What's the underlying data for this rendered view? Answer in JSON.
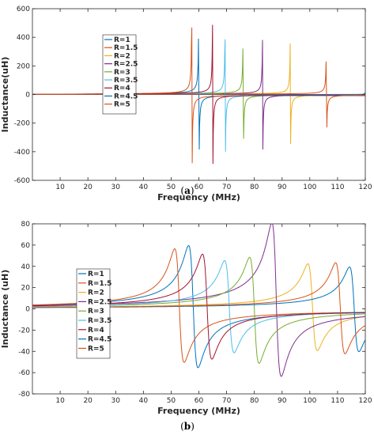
{
  "chart_data": [
    {
      "type": "line",
      "caption": "(a)",
      "xlabel": "Frequency (MHz)",
      "ylabel": "Inductance(uH)",
      "xlim": [
        0,
        120
      ],
      "ylim": [
        -600,
        600
      ],
      "xticks": [
        10,
        20,
        30,
        40,
        50,
        60,
        70,
        80,
        90,
        100,
        110,
        120
      ],
      "yticks": [
        -600,
        -400,
        -200,
        0,
        200,
        400,
        600
      ],
      "grid": false,
      "legend_position": "upper-left-center",
      "series": [
        {
          "name": "R=1",
          "color": "#0072BD",
          "resonance_mhz": 60.0,
          "peak": 515,
          "trough": -510
        },
        {
          "name": "R=1.5",
          "color": "#D95319",
          "resonance_mhz": 57.5,
          "peak": 545,
          "trough": -540
        },
        {
          "name": "R=2",
          "color": "#EDB120",
          "resonance_mhz": 93.0,
          "peak": 355,
          "trough": -345
        },
        {
          "name": "R=2.5",
          "color": "#7E2F8E",
          "resonance_mhz": 83.0,
          "peak": 380,
          "trough": -385
        },
        {
          "name": "R=3",
          "color": "#77AC30",
          "resonance_mhz": 76.0,
          "peak": 425,
          "trough": -410
        },
        {
          "name": "R=3.5",
          "color": "#4DBEEE",
          "resonance_mhz": 69.5,
          "peak": 450,
          "trough": -450
        },
        {
          "name": "R=4",
          "color": "#A2142F",
          "resonance_mhz": 65.0,
          "peak": 485,
          "trough": -485
        },
        {
          "name": "R=4.5",
          "color": "#0072BD",
          "resonance_mhz": 120.0,
          "peak": 15,
          "trough": 0
        },
        {
          "name": "R=5",
          "color": "#D95319",
          "resonance_mhz": 106.0,
          "peak": 305,
          "trough": -305
        }
      ]
    },
    {
      "type": "line",
      "caption": "(b)",
      "xlabel": "Frequency (MHz)",
      "ylabel": "Inductance (uH)",
      "xlim": [
        0,
        120
      ],
      "ylim": [
        -80,
        80
      ],
      "xticks": [
        10,
        20,
        30,
        40,
        50,
        60,
        70,
        80,
        90,
        100,
        110,
        120
      ],
      "yticks": [
        -80,
        -60,
        -40,
        -20,
        0,
        20,
        40,
        60,
        80
      ],
      "grid": false,
      "legend_position": "center-left",
      "series": [
        {
          "name": "R=1",
          "color": "#0072BD",
          "resonance_mhz": 58,
          "peak": 59,
          "trough": -55
        },
        {
          "name": "R=1.5",
          "color": "#D95319",
          "resonance_mhz": 53,
          "peak": 56,
          "trough": -50
        },
        {
          "name": "R=2",
          "color": "#EDB120",
          "resonance_mhz": 101,
          "peak": 42,
          "trough": -39
        },
        {
          "name": "R=2.5",
          "color": "#7E2F8E",
          "resonance_mhz": 88,
          "peak": 80,
          "trough": -63
        },
        {
          "name": "R=3",
          "color": "#77AC30",
          "resonance_mhz": 80,
          "peak": 48,
          "trough": -51
        },
        {
          "name": "R=3.5",
          "color": "#4DBEEE",
          "resonance_mhz": 71,
          "peak": 45,
          "trough": -41
        },
        {
          "name": "R=4",
          "color": "#A2142F",
          "resonance_mhz": 63,
          "peak": 51,
          "trough": -47
        },
        {
          "name": "R=4.5",
          "color": "#0072BD",
          "resonance_mhz": 116,
          "peak": 39,
          "trough": -40
        },
        {
          "name": "R=5",
          "color": "#D95319",
          "resonance_mhz": 111,
          "peak": 43,
          "trough": -42
        }
      ]
    }
  ]
}
